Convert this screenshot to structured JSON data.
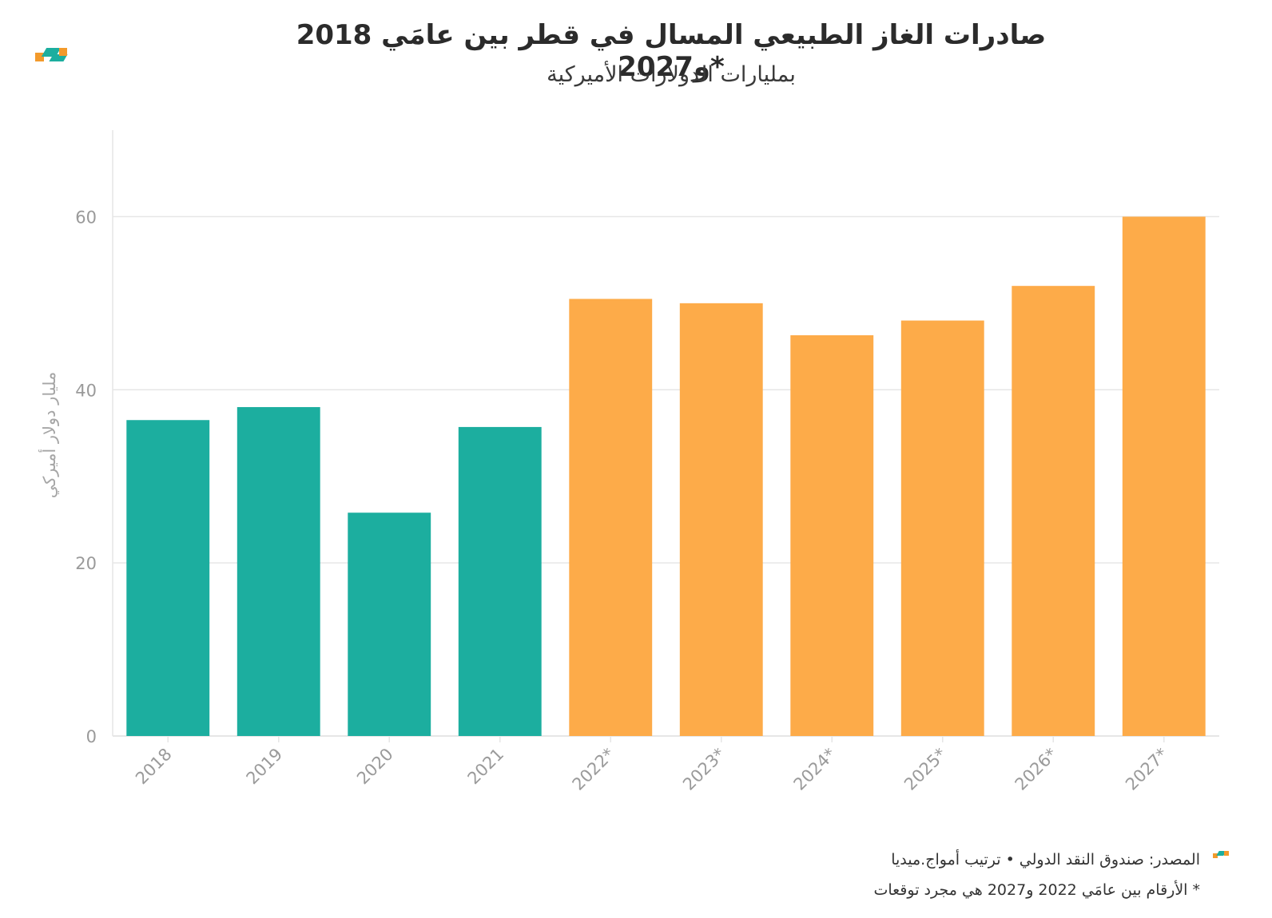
{
  "header": {
    "title": "صادرات الغاز الطبيعي المسال في قطر بين عامَي 2018 و2027*",
    "subtitle": "بمليارات الدولارات الأميركية"
  },
  "colors": {
    "actual": "#1cae9f",
    "forecast": "#fdab49",
    "grid": "#e6e6e6",
    "axis_text": "#9a9a9a",
    "logo_orange": "#f39a2b",
    "logo_teal": "#1cae9f"
  },
  "chart_data": {
    "type": "bar",
    "title": "صادرات الغاز الطبيعي المسال في قطر بين عامَي 2018 و2027*",
    "subtitle": "بمليارات الدولارات الأميركية",
    "xlabel": "",
    "ylabel": "مليار دولار أميركي",
    "ylim": [
      0,
      70
    ],
    "yticks": [
      0,
      20,
      40,
      60
    ],
    "grid": true,
    "categories": [
      "2018",
      "2019",
      "2020",
      "2021",
      "2022*",
      "2023*",
      "2024*",
      "2025*",
      "2026*",
      "2027*"
    ],
    "values": [
      36.5,
      38,
      25.8,
      35.7,
      50.5,
      50,
      46.3,
      48,
      52,
      60
    ],
    "status": [
      "actual",
      "actual",
      "actual",
      "actual",
      "forecast",
      "forecast",
      "forecast",
      "forecast",
      "forecast",
      "forecast"
    ]
  },
  "footer": {
    "source": "المصدر: صندوق النقد الدولي • ترتيب أمواج.ميديا",
    "note": "* الأرقام بين عامَي 2022 و2027 هي مجرد توقعات"
  },
  "icons": {
    "top_logo": "brand-logo-icon",
    "footer_logo": "brand-logo-icon"
  }
}
